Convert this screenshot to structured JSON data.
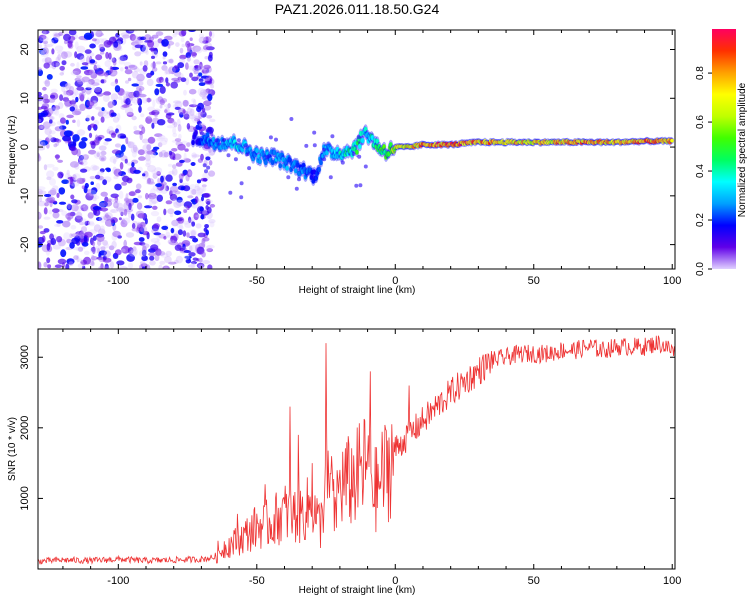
{
  "title": "PAZ1.2026.011.18.50.G24",
  "chart_data": [
    {
      "type": "heatmap",
      "panel": "spectrogram",
      "xlabel": "Height of straight line (km)",
      "ylabel": "Frequency (Hz)",
      "xlim": [
        -129,
        101
      ],
      "ylim": [
        -25,
        24
      ],
      "xticks": [
        -100,
        -50,
        0,
        50,
        100
      ],
      "yticks": [
        -20,
        -10,
        0,
        10,
        20
      ],
      "xtick_labels": [
        "-100",
        "-50",
        "0",
        "50",
        "100"
      ],
      "ytick_labels": [
        "-20",
        "-10",
        "0",
        "10",
        "20"
      ],
      "colorbar": {
        "label": "Normalized spectral amplitude",
        "range": [
          0,
          0.98
        ],
        "ticks": [
          0.0,
          0.2,
          0.4,
          0.6,
          0.8
        ],
        "tick_labels": [
          "0.0",
          "0.2",
          "0.4",
          "0.6",
          "0.8"
        ],
        "colormap": [
          "#e0d0ff",
          "#6000e8",
          "#0000ff",
          "#00a0ff",
          "#00ffff",
          "#00ff60",
          "#40ff00",
          "#c0ff00",
          "#ffff00",
          "#ffa000",
          "#ff3000",
          "#ff0060"
        ]
      },
      "signal_track": {
        "x": [
          -73,
          -68,
          -64,
          -60,
          -56,
          -52,
          -48,
          -44,
          -40,
          -36,
          -32,
          -29,
          -26,
          -22,
          -18,
          -14,
          -11,
          -9,
          -6,
          -3,
          0,
          5,
          10,
          20,
          30,
          40,
          50,
          60,
          70,
          80,
          90,
          100
        ],
        "freq": [
          2,
          1.5,
          1,
          1,
          0.5,
          -1,
          -2,
          -2,
          -3,
          -4,
          -5,
          -6,
          -1,
          -1,
          -1,
          0,
          3,
          2,
          0,
          -1,
          0,
          0,
          0.5,
          0.5,
          1,
          1,
          1,
          1,
          1,
          1,
          1.2,
          1.2
        ],
        "amplitude": [
          0.15,
          0.25,
          0.3,
          0.35,
          0.35,
          0.3,
          0.3,
          0.28,
          0.3,
          0.25,
          0.25,
          0.2,
          0.3,
          0.35,
          0.4,
          0.5,
          0.35,
          0.4,
          0.5,
          0.55,
          0.7,
          0.75,
          0.85,
          0.9,
          0.85,
          0.8,
          0.75,
          0.8,
          0.85,
          0.8,
          0.85,
          0.8
        ]
      },
      "noise_region": {
        "x_range": [
          -129,
          -66
        ],
        "freq_range": [
          -25,
          24
        ],
        "amplitude_range": [
          0.0,
          0.2
        ]
      }
    },
    {
      "type": "line",
      "panel": "snr",
      "xlabel": "Height of straight line (km)",
      "ylabel": "SNR (10 * v/v)",
      "xlim": [
        -129,
        101
      ],
      "ylim": [
        0,
        3400
      ],
      "xticks": [
        -100,
        -50,
        0,
        50,
        100
      ],
      "yticks": [
        1000,
        2000,
        3000
      ],
      "xtick_labels": [
        "-100",
        "-50",
        "0",
        "50",
        "100"
      ],
      "ytick_labels": [
        "1000",
        "2000",
        "3000"
      ],
      "color": "#ee3333",
      "series": [
        {
          "name": "SNR",
          "x": [
            -129,
            -120,
            -110,
            -100,
            -90,
            -80,
            -70,
            -65,
            -62,
            -58,
            -55,
            -50,
            -45,
            -40,
            -35,
            -30,
            -27,
            -25,
            -22,
            -20,
            -15,
            -12,
            -10,
            -7,
            -5,
            -2,
            0,
            5,
            10,
            15,
            20,
            25,
            30,
            35,
            40,
            45,
            50,
            55,
            60,
            65,
            70,
            75,
            80,
            85,
            90,
            95,
            100,
            101
          ],
          "values": [
            90,
            110,
            100,
            120,
            100,
            110,
            120,
            150,
            300,
            380,
            450,
            600,
            650,
            800,
            750,
            900,
            600,
            1300,
            800,
            1200,
            1250,
            1400,
            1500,
            1100,
            1300,
            1500,
            1700,
            1900,
            2100,
            2300,
            2500,
            2650,
            2800,
            2950,
            3000,
            3050,
            3050,
            3050,
            3100,
            3100,
            3150,
            3100,
            3150,
            3150,
            3150,
            3200,
            3100,
            3050
          ]
        }
      ],
      "spikes": [
        {
          "x": -64,
          "value": 400
        },
        {
          "x": -57,
          "value": 780
        },
        {
          "x": -47,
          "value": 1200
        },
        {
          "x": -38,
          "value": 2300
        },
        {
          "x": -35,
          "value": 1900
        },
        {
          "x": -30,
          "value": 1500
        },
        {
          "x": -25,
          "value": 3200
        },
        {
          "x": -23,
          "value": 1600
        },
        {
          "x": -9,
          "value": 2800
        },
        {
          "x": 5,
          "value": 2600
        }
      ]
    }
  ]
}
